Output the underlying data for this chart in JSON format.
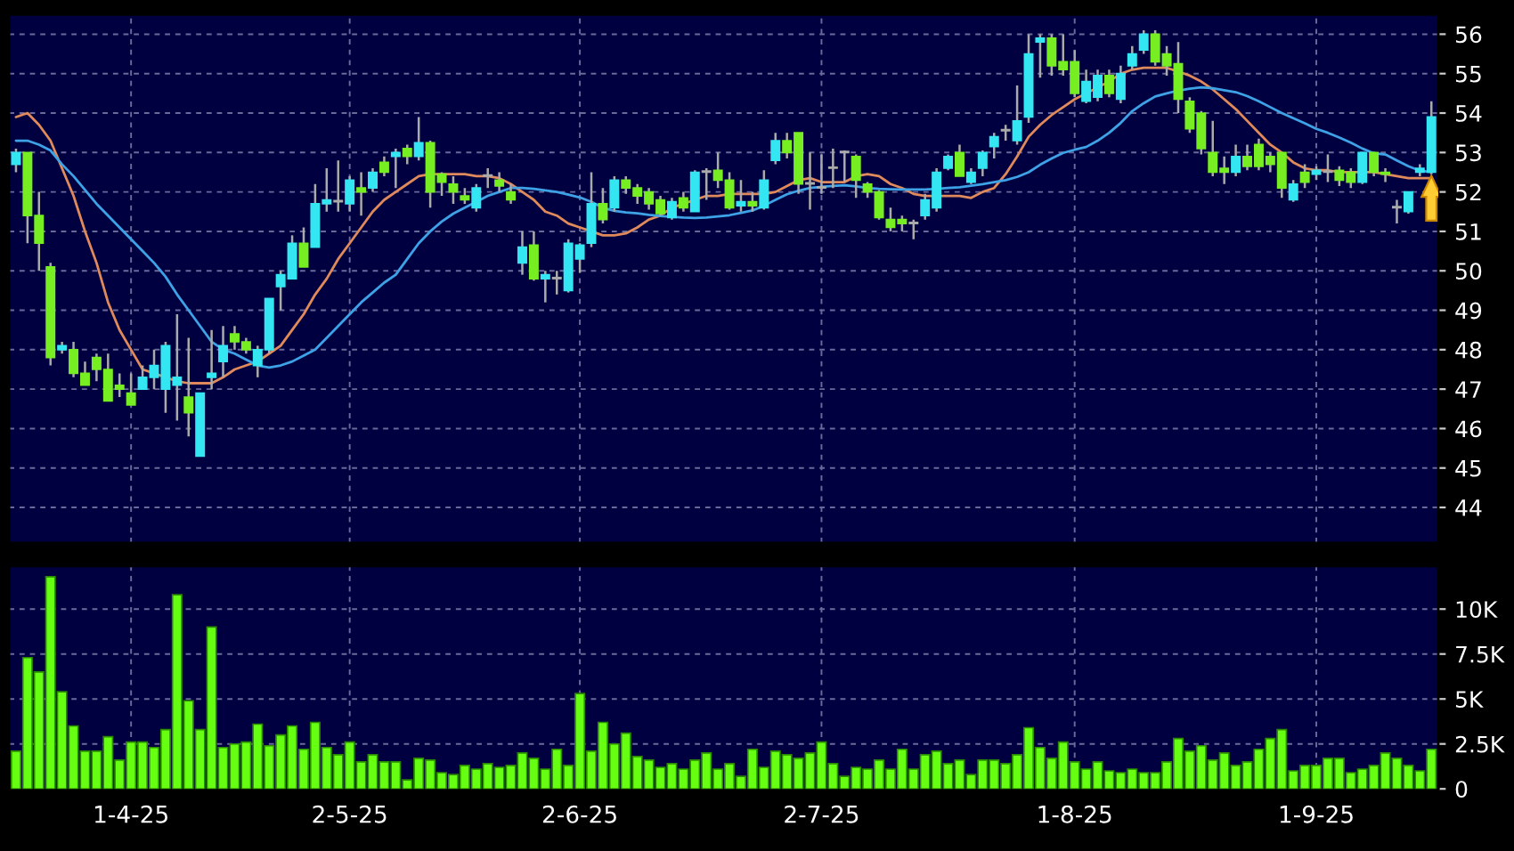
{
  "chart_data": [
    {
      "type": "candlestick",
      "categories": [
        null,
        null,
        null,
        null,
        null,
        null,
        null,
        null,
        null,
        null,
        null,
        null,
        null,
        null,
        null,
        null,
        null,
        null,
        null,
        null,
        null,
        null,
        null,
        null,
        null,
        null,
        null,
        null,
        null,
        null,
        null,
        null,
        null,
        null,
        null,
        null,
        null,
        null,
        null,
        null,
        null,
        null,
        null,
        null,
        null,
        null,
        null,
        null,
        null,
        null,
        null,
        null,
        null,
        null,
        null,
        null,
        null,
        null,
        null,
        null,
        null,
        null,
        null,
        null,
        null,
        null,
        null,
        null,
        null,
        null,
        null,
        null,
        null,
        null,
        null,
        null,
        null,
        null,
        null,
        null,
        null,
        null,
        null,
        null,
        null,
        null,
        null,
        null,
        null,
        null,
        null,
        null,
        null,
        null,
        null,
        null,
        null,
        null,
        null,
        null,
        null,
        null,
        null,
        null,
        null,
        null,
        null,
        null,
        null,
        null,
        null,
        null,
        null,
        null,
        null,
        null,
        null,
        null,
        null,
        null,
        null,
        null,
        null,
        null
      ],
      "ohlc": [
        [
          52.7,
          53.1,
          52.5,
          53.0
        ],
        [
          53.0,
          53.0,
          50.7,
          51.4
        ],
        [
          51.4,
          52.0,
          50.0,
          50.7
        ],
        [
          50.1,
          50.2,
          47.6,
          47.8
        ],
        [
          48.0,
          48.2,
          47.9,
          48.1
        ],
        [
          48.0,
          48.2,
          47.3,
          47.4
        ],
        [
          47.4,
          47.7,
          47.1,
          47.1
        ],
        [
          47.8,
          47.9,
          47.2,
          47.5
        ],
        [
          47.5,
          47.9,
          46.7,
          46.7
        ],
        [
          47.1,
          47.4,
          46.8,
          47.0
        ],
        [
          46.9,
          47.4,
          46.6,
          46.6
        ],
        [
          47.0,
          47.6,
          47.0,
          47.3
        ],
        [
          47.3,
          48.0,
          47.0,
          47.6
        ],
        [
          47.0,
          48.2,
          46.4,
          48.1
        ],
        [
          47.1,
          48.9,
          46.2,
          47.3
        ],
        [
          46.8,
          48.3,
          45.8,
          46.4
        ],
        [
          45.3,
          46.9,
          45.3,
          46.9
        ],
        [
          47.3,
          48.5,
          47.0,
          47.4
        ],
        [
          47.7,
          48.6,
          47.3,
          48.1
        ],
        [
          48.4,
          48.6,
          48.0,
          48.2
        ],
        [
          48.2,
          48.3,
          47.9,
          48.0
        ],
        [
          47.6,
          48.1,
          47.3,
          48.0
        ],
        [
          48.0,
          49.3,
          47.9,
          49.3
        ],
        [
          49.6,
          50.0,
          49.0,
          49.9
        ],
        [
          49.8,
          50.9,
          49.8,
          50.7
        ],
        [
          50.7,
          51.1,
          50.1,
          50.1
        ],
        [
          50.6,
          52.2,
          50.6,
          51.7
        ],
        [
          51.7,
          52.6,
          51.5,
          51.8
        ],
        [
          51.75,
          52.8,
          51.5,
          51.75
        ],
        [
          51.7,
          52.4,
          51.5,
          52.3
        ],
        [
          52.1,
          52.5,
          51.4,
          52.0
        ],
        [
          52.1,
          52.6,
          52.0,
          52.5
        ],
        [
          52.75,
          52.9,
          52.4,
          52.5
        ],
        [
          52.9,
          53.1,
          52.1,
          53.0
        ],
        [
          53.1,
          53.2,
          52.7,
          52.9
        ],
        [
          52.9,
          53.9,
          52.8,
          53.25
        ],
        [
          53.25,
          53.3,
          51.6,
          52.0
        ],
        [
          52.45,
          52.5,
          51.9,
          52.25
        ],
        [
          52.2,
          52.4,
          51.7,
          52.0
        ],
        [
          51.9,
          52.1,
          51.7,
          51.8
        ],
        [
          51.6,
          52.2,
          51.5,
          52.1
        ],
        [
          52.4,
          52.6,
          52.1,
          52.4
        ],
        [
          52.3,
          52.5,
          52.0,
          52.15
        ],
        [
          52.0,
          52.2,
          51.7,
          51.8
        ],
        [
          50.2,
          51.0,
          49.9,
          50.6
        ],
        [
          50.65,
          51.0,
          49.75,
          49.8
        ],
        [
          49.8,
          50.0,
          49.2,
          49.9
        ],
        [
          49.8,
          50.0,
          49.4,
          49.8
        ],
        [
          49.5,
          50.8,
          49.45,
          50.7
        ],
        [
          50.3,
          50.7,
          49.95,
          50.65
        ],
        [
          50.7,
          52.5,
          50.6,
          51.7
        ],
        [
          51.7,
          52.1,
          51.2,
          51.3
        ],
        [
          51.6,
          52.4,
          51.5,
          52.3
        ],
        [
          52.3,
          52.4,
          51.95,
          52.1
        ],
        [
          52.1,
          52.2,
          51.7,
          51.9
        ],
        [
          52.0,
          52.1,
          51.55,
          51.7
        ],
        [
          51.8,
          51.9,
          51.4,
          51.45
        ],
        [
          51.35,
          51.85,
          51.3,
          51.75
        ],
        [
          51.85,
          52.0,
          51.5,
          51.6
        ],
        [
          51.5,
          52.55,
          51.5,
          52.5
        ],
        [
          52.5,
          52.6,
          51.8,
          52.5
        ],
        [
          52.55,
          53.0,
          52.1,
          52.3
        ],
        [
          52.3,
          52.5,
          51.55,
          51.6
        ],
        [
          51.65,
          52.3,
          51.5,
          51.75
        ],
        [
          51.75,
          52.0,
          51.5,
          51.65
        ],
        [
          51.6,
          52.55,
          51.55,
          52.3
        ],
        [
          52.8,
          53.5,
          52.7,
          53.3
        ],
        [
          53.3,
          53.5,
          52.85,
          53.0
        ],
        [
          53.5,
          53.5,
          51.95,
          52.2
        ],
        [
          52.2,
          53.0,
          51.55,
          52.2
        ],
        [
          52.1,
          52.95,
          51.95,
          52.1
        ],
        [
          52.6,
          53.1,
          52.1,
          52.6
        ],
        [
          53.0,
          53.05,
          52.25,
          53.0
        ],
        [
          52.9,
          52.95,
          51.85,
          52.3
        ],
        [
          52.2,
          52.25,
          51.85,
          52.0
        ],
        [
          52.0,
          52.05,
          51.3,
          51.35
        ],
        [
          51.3,
          51.6,
          51.0,
          51.1
        ],
        [
          51.3,
          51.4,
          51.0,
          51.2
        ],
        [
          51.2,
          51.3,
          50.8,
          51.2
        ],
        [
          51.4,
          51.95,
          51.3,
          51.8
        ],
        [
          51.6,
          52.6,
          51.5,
          52.5
        ],
        [
          52.6,
          52.95,
          52.55,
          52.9
        ],
        [
          53.0,
          53.2,
          52.4,
          52.4
        ],
        [
          52.25,
          52.6,
          52.2,
          52.5
        ],
        [
          52.6,
          53.05,
          52.4,
          53.0
        ],
        [
          53.15,
          53.5,
          52.85,
          53.4
        ],
        [
          53.55,
          53.7,
          53.3,
          53.55
        ],
        [
          53.3,
          54.7,
          53.2,
          53.8
        ],
        [
          53.9,
          56.0,
          53.75,
          55.5
        ],
        [
          55.8,
          56.0,
          54.9,
          55.9
        ],
        [
          55.9,
          56.0,
          54.95,
          55.2
        ],
        [
          55.3,
          56.0,
          54.95,
          55.1
        ],
        [
          55.3,
          55.6,
          54.4,
          54.5
        ],
        [
          54.3,
          55.1,
          54.25,
          54.8
        ],
        [
          54.4,
          55.1,
          54.3,
          54.95
        ],
        [
          54.95,
          55.1,
          54.4,
          54.5
        ],
        [
          54.35,
          55.2,
          54.25,
          55.0
        ],
        [
          55.2,
          55.7,
          55.1,
          55.5
        ],
        [
          55.6,
          56.1,
          55.5,
          56.0
        ],
        [
          56.0,
          56.1,
          55.2,
          55.3
        ],
        [
          55.5,
          55.7,
          54.95,
          55.2
        ],
        [
          55.25,
          55.8,
          54.0,
          54.35
        ],
        [
          54.3,
          54.4,
          53.5,
          53.6
        ],
        [
          54.0,
          54.05,
          52.95,
          53.1
        ],
        [
          53.0,
          53.8,
          52.4,
          52.5
        ],
        [
          52.6,
          52.9,
          52.2,
          52.5
        ],
        [
          52.5,
          53.2,
          52.4,
          52.9
        ],
        [
          52.9,
          53.2,
          52.55,
          52.65
        ],
        [
          53.2,
          53.35,
          52.55,
          52.65
        ],
        [
          52.9,
          53.0,
          52.5,
          52.7
        ],
        [
          53.0,
          53.0,
          51.85,
          52.1
        ],
        [
          51.8,
          52.3,
          51.75,
          52.2
        ],
        [
          52.5,
          52.7,
          52.1,
          52.25
        ],
        [
          52.45,
          52.65,
          52.3,
          52.55
        ],
        [
          52.5,
          52.95,
          52.25,
          52.5
        ],
        [
          52.55,
          52.65,
          52.15,
          52.3
        ],
        [
          52.5,
          52.6,
          52.1,
          52.25
        ],
        [
          52.25,
          53.0,
          52.2,
          53.0
        ],
        [
          53.0,
          53.0,
          52.4,
          52.5
        ],
        [
          52.5,
          52.6,
          52.25,
          52.45
        ],
        [
          51.6,
          51.8,
          51.2,
          51.6
        ],
        [
          51.5,
          52.0,
          51.45,
          52.0
        ],
        [
          52.5,
          52.7,
          52.4,
          52.6
        ],
        [
          52.5,
          54.3,
          52.45,
          53.9
        ]
      ],
      "colors": [
        "#33e6f2",
        "#77ee22",
        "#77ee22",
        "#77ee22",
        "#33e6f2",
        "#77ee22",
        "#77ee22",
        "#77ee22",
        "#77ee22",
        "#77ee22",
        "#77ee22",
        "#33e6f2",
        "#33e6f2",
        "#33e6f2",
        "#33e6f2",
        "#77ee22",
        "#33e6f2",
        "#33e6f2",
        "#33e6f2",
        "#77ee22",
        "#77ee22",
        "#33e6f2",
        "#33e6f2",
        "#33e6f2",
        "#33e6f2",
        "#77ee22",
        "#33e6f2",
        "#33e6f2",
        "#aaaaaa",
        "#33e6f2",
        "#77ee22",
        "#33e6f2",
        "#77ee22",
        "#33e6f2",
        "#77ee22",
        "#33e6f2",
        "#77ee22",
        "#77ee22",
        "#77ee22",
        "#77ee22",
        "#33e6f2",
        "#aaaaaa",
        "#77ee22",
        "#77ee22",
        "#33e6f2",
        "#77ee22",
        "#33e6f2",
        "#aaaaaa",
        "#33e6f2",
        "#33e6f2",
        "#33e6f2",
        "#77ee22",
        "#33e6f2",
        "#77ee22",
        "#77ee22",
        "#77ee22",
        "#77ee22",
        "#33e6f2",
        "#77ee22",
        "#33e6f2",
        "#aaaaaa",
        "#77ee22",
        "#77ee22",
        "#33e6f2",
        "#77ee22",
        "#33e6f2",
        "#33e6f2",
        "#77ee22",
        "#77ee22",
        "#aaaaaa",
        "#aaaaaa",
        "#aaaaaa",
        "#aaaaaa",
        "#77ee22",
        "#77ee22",
        "#77ee22",
        "#77ee22",
        "#77ee22",
        "#aaaaaa",
        "#33e6f2",
        "#33e6f2",
        "#33e6f2",
        "#77ee22",
        "#33e6f2",
        "#33e6f2",
        "#33e6f2",
        "#aaaaaa",
        "#33e6f2",
        "#33e6f2",
        "#33e6f2",
        "#77ee22",
        "#77ee22",
        "#77ee22",
        "#33e6f2",
        "#33e6f2",
        "#77ee22",
        "#33e6f2",
        "#33e6f2",
        "#33e6f2",
        "#77ee22",
        "#77ee22",
        "#77ee22",
        "#77ee22",
        "#77ee22",
        "#77ee22",
        "#77ee22",
        "#33e6f2",
        "#77ee22",
        "#77ee22",
        "#77ee22",
        "#77ee22",
        "#33e6f2",
        "#77ee22",
        "#33e6f2",
        "#aaaaaa",
        "#77ee22",
        "#77ee22",
        "#33e6f2",
        "#77ee22",
        "#77ee22",
        "#aaaaaa",
        "#33e6f2",
        "#33e6f2",
        "#33e6f2"
      ],
      "series": [
        {
          "type": "line",
          "color": "#e08a5c",
          "values": [
            53.9,
            54.0,
            53.7,
            53.3,
            52.6,
            51.9,
            51.0,
            50.2,
            49.2,
            48.5,
            48.0,
            47.5,
            47.4,
            47.3,
            47.2,
            47.15,
            47.15,
            47.15,
            47.3,
            47.5,
            47.6,
            47.7,
            47.9,
            48.1,
            48.5,
            48.9,
            49.4,
            49.8,
            50.3,
            50.7,
            51.1,
            51.5,
            51.8,
            52.0,
            52.2,
            52.4,
            52.45,
            52.45,
            52.45,
            52.45,
            52.4,
            52.4,
            52.35,
            52.2,
            52.0,
            51.8,
            51.5,
            51.4,
            51.2,
            51.1,
            51.0,
            50.9,
            50.9,
            50.95,
            51.1,
            51.3,
            51.4,
            51.6,
            51.7,
            51.8,
            51.9,
            51.9,
            51.95,
            51.95,
            51.95,
            51.95,
            52.0,
            52.15,
            52.3,
            52.35,
            52.25,
            52.25,
            52.25,
            52.4,
            52.45,
            52.4,
            52.2,
            52.1,
            51.95,
            51.9,
            51.9,
            51.9,
            51.9,
            51.85,
            52.0,
            52.1,
            52.45,
            52.9,
            53.4,
            53.7,
            53.95,
            54.15,
            54.35,
            54.5,
            54.65,
            54.8,
            55.0,
            55.1,
            55.15,
            55.15,
            55.15,
            55.05,
            54.95,
            54.8,
            54.6,
            54.35,
            54.1,
            53.8,
            53.5,
            53.2,
            53.0,
            52.75,
            52.6,
            52.55,
            52.55,
            52.5,
            52.5,
            52.5,
            52.5,
            52.45,
            52.4,
            52.35,
            52.35,
            52.35
          ]
        },
        {
          "type": "line",
          "color": "#3ea2e6",
          "values": [
            53.3,
            53.3,
            53.2,
            53.05,
            52.7,
            52.4,
            52.05,
            51.7,
            51.4,
            51.1,
            50.8,
            50.5,
            50.2,
            49.85,
            49.4,
            49.0,
            48.6,
            48.2,
            48.0,
            47.9,
            47.75,
            47.6,
            47.55,
            47.6,
            47.7,
            47.85,
            48.0,
            48.3,
            48.6,
            48.9,
            49.2,
            49.45,
            49.7,
            49.9,
            50.3,
            50.7,
            51.0,
            51.25,
            51.45,
            51.6,
            51.75,
            51.9,
            52.0,
            52.1,
            52.1,
            52.08,
            52.04,
            52.0,
            51.93,
            51.86,
            51.75,
            51.6,
            51.52,
            51.48,
            51.46,
            51.42,
            51.39,
            51.37,
            51.35,
            51.34,
            51.35,
            51.38,
            51.41,
            51.47,
            51.53,
            51.65,
            51.8,
            51.94,
            52.03,
            52.1,
            52.13,
            52.15,
            52.17,
            52.14,
            52.1,
            52.08,
            52.07,
            52.06,
            52.06,
            52.06,
            52.08,
            52.1,
            52.12,
            52.16,
            52.2,
            52.25,
            52.3,
            52.38,
            52.5,
            52.69,
            52.85,
            52.99,
            53.07,
            53.14,
            53.3,
            53.5,
            53.75,
            54.05,
            54.25,
            54.42,
            54.5,
            54.57,
            54.62,
            54.65,
            54.63,
            54.58,
            54.53,
            54.43,
            54.3,
            54.15,
            54.0,
            53.87,
            53.74,
            53.6,
            53.5,
            53.38,
            53.25,
            53.1,
            52.98,
            52.95,
            52.8,
            52.65,
            52.54,
            52.5
          ]
        }
      ],
      "ylim": [
        43.1,
        56.5
      ],
      "yticks": [
        44,
        45,
        46,
        47,
        48,
        49,
        50,
        51,
        52,
        53,
        54,
        55,
        56
      ],
      "grid": true,
      "tick_labels": "y"
    },
    {
      "type": "bar",
      "categories": [
        null,
        null,
        null,
        null,
        null,
        null,
        null,
        null,
        null,
        null,
        "1-4-25",
        null,
        null,
        null,
        null,
        null,
        null,
        null,
        null,
        null,
        null,
        null,
        null,
        null,
        null,
        null,
        null,
        null,
        null,
        "2-5-25",
        null,
        null,
        null,
        null,
        null,
        null,
        null,
        null,
        null,
        null,
        null,
        null,
        null,
        null,
        null,
        null,
        null,
        null,
        null,
        "2-6-25",
        null,
        null,
        null,
        null,
        null,
        null,
        null,
        null,
        null,
        null,
        null,
        null,
        null,
        null,
        null,
        null,
        null,
        null,
        null,
        null,
        "2-7-25",
        null,
        null,
        null,
        null,
        null,
        null,
        null,
        null,
        null,
        null,
        null,
        null,
        null,
        null,
        null,
        null,
        null,
        null,
        null,
        null,
        null,
        "1-8-25",
        null,
        null,
        null,
        null,
        null,
        null,
        null,
        null,
        null,
        null,
        null,
        null,
        null,
        null,
        null,
        null,
        null,
        null,
        null,
        null,
        "1-9-25",
        null,
        null,
        null,
        null,
        null,
        null,
        null,
        null,
        null,
        null
      ],
      "values": [
        2100,
        7300,
        6500,
        11800,
        5400,
        3500,
        2100,
        2100,
        2900,
        1600,
        2600,
        2600,
        2300,
        3300,
        10800,
        4900,
        3300,
        9000,
        2300,
        2500,
        2600,
        3600,
        2400,
        3000,
        3500,
        2200,
        3700,
        2300,
        1900,
        2600,
        1500,
        1900,
        1500,
        1500,
        500,
        1700,
        1600,
        900,
        800,
        1300,
        1100,
        1400,
        1200,
        1300,
        2000,
        1700,
        1100,
        2200,
        1300,
        5300,
        2100,
        3700,
        2500,
        3100,
        1800,
        1600,
        1200,
        1400,
        1100,
        1600,
        2000,
        1100,
        1400,
        700,
        2200,
        1200,
        2100,
        1900,
        1700,
        2000,
        2600,
        1400,
        700,
        1200,
        1100,
        1600,
        1100,
        2200,
        1100,
        1900,
        2100,
        1400,
        1600,
        800,
        1600,
        1600,
        1400,
        1900,
        3400,
        2300,
        1700,
        2600,
        1500,
        1100,
        1500,
        1000,
        900,
        1100,
        900,
        900,
        1500,
        2800,
        2100,
        2400,
        1600,
        2000,
        1300,
        1500,
        2200,
        2800,
        3300,
        1000,
        1300,
        1300,
        1700,
        1700,
        900,
        1100,
        1300,
        2000,
        1700,
        1300,
        1000,
        2200
      ],
      "color": "#66ff11",
      "ylim": [
        0,
        12400
      ],
      "yticks": [
        0,
        {
          "value": 2500,
          "label": "2.5K"
        },
        {
          "value": 5000,
          "label": "5K"
        },
        {
          "value": 7500,
          "label": "7.5K"
        },
        {
          "value": 10000,
          "label": "10K"
        }
      ],
      "grid": true
    }
  ]
}
